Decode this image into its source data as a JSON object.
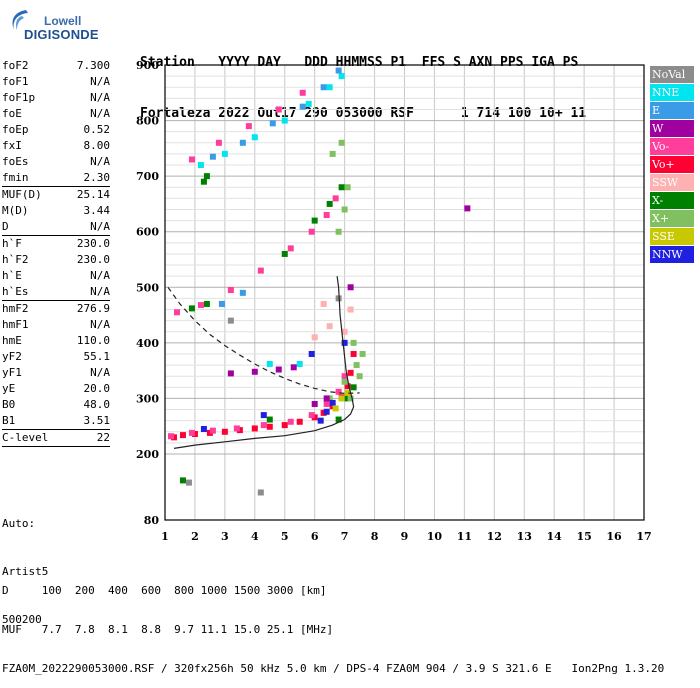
{
  "logo": {
    "top": "Lowell",
    "main": "DIGISONDE"
  },
  "header": {
    "line1": "Station   YYYY DAY   DDD HHMMSS P1  FFS S AXN PPS IGA PS",
    "line2": "Fortaleza 2022 Out17 290 053000 RSF      1 714 100 10+ 11"
  },
  "params": [
    {
      "name": "foF2",
      "value": "7.300"
    },
    {
      "name": "foF1",
      "value": "N/A"
    },
    {
      "name": "foF1p",
      "value": "N/A"
    },
    {
      "name": "foE",
      "value": "N/A"
    },
    {
      "name": "foEp",
      "value": "0.52"
    },
    {
      "name": "fxI",
      "value": "8.00"
    },
    {
      "name": "foEs",
      "value": "N/A"
    },
    {
      "name": "fmin",
      "value": "2.30",
      "sep": true
    },
    {
      "name": "MUF(D)",
      "value": "25.14"
    },
    {
      "name": "M(D)",
      "value": "3.44"
    },
    {
      "name": "D",
      "value": "N/A",
      "sep": true
    },
    {
      "name": "h`F",
      "value": "230.0"
    },
    {
      "name": "h`F2",
      "value": "230.0"
    },
    {
      "name": "h`E",
      "value": "N/A"
    },
    {
      "name": "h`Es",
      "value": "N/A",
      "sep": true
    },
    {
      "name": "hmF2",
      "value": "276.9"
    },
    {
      "name": "hmF1",
      "value": "N/A"
    },
    {
      "name": "hmE",
      "value": "110.0"
    },
    {
      "name": "yF2",
      "value": "55.1"
    },
    {
      "name": "yF1",
      "value": "N/A"
    },
    {
      "name": "yE",
      "value": "20.0"
    },
    {
      "name": "B0",
      "value": "48.0"
    },
    {
      "name": "B1",
      "value": "3.51",
      "sep": true
    },
    {
      "name": "C-level",
      "value": "22",
      "sep": true
    }
  ],
  "auto": {
    "line1": "Auto:",
    "line2": "Artist5",
    "line3": "500200"
  },
  "footer": {
    "line1": "D     100  200  400  600  800 1000 1500 3000 [km]",
    "line2": "MUF   7.7  7.8  8.1  8.8  9.7 11.1 15.0 25.1 [MHz]",
    "line3": "FZA0M_2022290053000.RSF / 320fx256h 50 kHz 5.0 km / DPS-4 FZA0M 904 / 3.9 S 321.6 E   Ion2Png 1.3.20"
  },
  "legend": [
    {
      "label": "NoVal",
      "color": "#8c8c8c"
    },
    {
      "label": "NNE",
      "color": "#00e5ee"
    },
    {
      "label": "E",
      "color": "#3a9ce6"
    },
    {
      "label": "W",
      "color": "#a000a0"
    },
    {
      "label": "Vo-",
      "color": "#ff3d9a"
    },
    {
      "label": "Vo+",
      "color": "#ff0033"
    },
    {
      "label": "SSW",
      "color": "#ffb0b0"
    },
    {
      "label": "X-",
      "color": "#008000"
    },
    {
      "label": "X+",
      "color": "#80c060"
    },
    {
      "label": "SSE",
      "color": "#c8c800"
    },
    {
      "label": "NNW",
      "color": "#2020e0"
    }
  ],
  "chart_data": {
    "type": "scatter",
    "title": "",
    "xlabel": "",
    "ylabel": "",
    "xlim": [
      1,
      17
    ],
    "ylim": [
      80,
      900
    ],
    "xticks": [
      "1",
      "2",
      "3",
      "4",
      "5",
      "6",
      "7",
      "8",
      "9",
      "10",
      "11",
      "12",
      "13",
      "14",
      "15",
      "16",
      "17"
    ],
    "yticks": [
      "80",
      "200",
      "300",
      "400",
      "500",
      "600",
      "700",
      "800",
      "900"
    ],
    "yticks_values": [
      80,
      200,
      300,
      400,
      500,
      600,
      700,
      800,
      900
    ],
    "grid": true,
    "series": [
      {
        "name": "Vo+",
        "color": "#ff0033",
        "points": [
          [
            1.3,
            230
          ],
          [
            1.6,
            234
          ],
          [
            2.0,
            236
          ],
          [
            2.5,
            238
          ],
          [
            3.0,
            240
          ],
          [
            3.5,
            243
          ],
          [
            4.0,
            246
          ],
          [
            4.5,
            249
          ],
          [
            5.0,
            252
          ],
          [
            5.5,
            258
          ],
          [
            6.0,
            266
          ],
          [
            6.3,
            274
          ],
          [
            6.6,
            286
          ],
          [
            6.9,
            302
          ],
          [
            7.1,
            322
          ],
          [
            7.2,
            346
          ],
          [
            7.3,
            380
          ]
        ]
      },
      {
        "name": "Vo-",
        "color": "#ff3d9a",
        "points": [
          [
            1.2,
            232
          ],
          [
            1.9,
            238
          ],
          [
            2.6,
            242
          ],
          [
            3.4,
            246
          ],
          [
            4.3,
            252
          ],
          [
            5.2,
            258
          ],
          [
            5.9,
            270
          ],
          [
            6.4,
            290
          ],
          [
            6.8,
            312
          ],
          [
            7.0,
            340
          ],
          [
            1.4,
            455
          ],
          [
            2.2,
            468
          ],
          [
            3.2,
            495
          ],
          [
            4.2,
            530
          ],
          [
            5.2,
            570
          ],
          [
            5.9,
            600
          ],
          [
            6.4,
            630
          ],
          [
            6.7,
            660
          ],
          [
            1.9,
            730
          ],
          [
            2.8,
            760
          ],
          [
            3.8,
            790
          ],
          [
            4.8,
            820
          ],
          [
            5.6,
            850
          ]
        ]
      },
      {
        "name": "X-",
        "color": "#008000",
        "points": [
          [
            1.9,
            462
          ],
          [
            2.4,
            470
          ],
          [
            5.0,
            560
          ],
          [
            6.0,
            620
          ],
          [
            6.5,
            650
          ],
          [
            6.9,
            680
          ],
          [
            2.3,
            690
          ],
          [
            2.4,
            700
          ],
          [
            1.6,
            152
          ],
          [
            7.1,
            300
          ],
          [
            7.3,
            320
          ],
          [
            6.8,
            262
          ],
          [
            4.5,
            262
          ]
        ]
      },
      {
        "name": "X+",
        "color": "#80c060",
        "points": [
          [
            6.5,
            300
          ],
          [
            7.0,
            330
          ],
          [
            7.4,
            360
          ],
          [
            7.6,
            380
          ],
          [
            7.5,
            340
          ],
          [
            7.3,
            400
          ],
          [
            6.8,
            600
          ],
          [
            7.0,
            640
          ],
          [
            7.1,
            680
          ],
          [
            6.6,
            740
          ],
          [
            6.9,
            760
          ],
          [
            7.2,
            300
          ]
        ]
      },
      {
        "name": "NNE",
        "color": "#00e5ee",
        "points": [
          [
            2.2,
            720
          ],
          [
            3.0,
            740
          ],
          [
            4.0,
            770
          ],
          [
            5.0,
            800
          ],
          [
            5.8,
            830
          ],
          [
            6.5,
            860
          ],
          [
            6.9,
            880
          ],
          [
            5.5,
            362
          ],
          [
            4.5,
            362
          ]
        ]
      },
      {
        "name": "E",
        "color": "#3a9ce6",
        "points": [
          [
            2.6,
            735
          ],
          [
            3.6,
            760
          ],
          [
            4.6,
            795
          ],
          [
            5.6,
            825
          ],
          [
            6.3,
            860
          ],
          [
            6.8,
            890
          ],
          [
            2.9,
            470
          ],
          [
            3.6,
            490
          ]
        ]
      },
      {
        "name": "W",
        "color": "#a000a0",
        "points": [
          [
            3.2,
            345
          ],
          [
            4.0,
            348
          ],
          [
            4.8,
            352
          ],
          [
            5.3,
            356
          ],
          [
            11.1,
            642
          ],
          [
            6.0,
            290
          ],
          [
            6.4,
            300
          ],
          [
            7.2,
            500
          ]
        ]
      },
      {
        "name": "NNW",
        "color": "#2020e0",
        "points": [
          [
            6.2,
            260
          ],
          [
            6.4,
            276
          ],
          [
            6.6,
            292
          ],
          [
            2.3,
            245
          ],
          [
            5.9,
            380
          ],
          [
            4.3,
            270
          ],
          [
            7.0,
            400
          ]
        ]
      },
      {
        "name": "SSW",
        "color": "#ffb0b0",
        "points": [
          [
            6.0,
            410
          ],
          [
            6.5,
            430
          ],
          [
            7.0,
            420
          ],
          [
            7.2,
            460
          ],
          [
            6.3,
            470
          ]
        ]
      },
      {
        "name": "SSE",
        "color": "#c8c800",
        "points": [
          [
            6.9,
            300
          ],
          [
            7.1,
            310
          ],
          [
            6.7,
            282
          ]
        ]
      },
      {
        "name": "NoVal",
        "color": "#8c8c8c",
        "points": [
          [
            1.8,
            148
          ],
          [
            4.2,
            130
          ],
          [
            3.2,
            440
          ],
          [
            6.8,
            480
          ]
        ]
      }
    ],
    "curves": [
      {
        "name": "profile",
        "style": "solid",
        "points": [
          [
            1.3,
            210
          ],
          [
            2,
            216
          ],
          [
            3,
            222
          ],
          [
            4,
            228
          ],
          [
            5,
            233
          ],
          [
            6,
            242
          ],
          [
            6.6,
            252
          ],
          [
            7.0,
            262
          ],
          [
            7.2,
            272
          ],
          [
            7.3,
            285
          ],
          [
            7.25,
            300
          ],
          [
            7.15,
            320
          ],
          [
            7.05,
            350
          ],
          [
            6.95,
            400
          ],
          [
            6.85,
            450
          ],
          [
            6.8,
            500
          ],
          [
            6.75,
            520
          ]
        ]
      },
      {
        "name": "model",
        "style": "dashed",
        "points": [
          [
            1.1,
            500
          ],
          [
            1.5,
            470
          ],
          [
            2,
            440
          ],
          [
            2.5,
            415
          ],
          [
            3,
            395
          ],
          [
            3.5,
            378
          ],
          [
            4,
            362
          ],
          [
            4.5,
            348
          ],
          [
            5,
            336
          ],
          [
            5.5,
            326
          ],
          [
            6,
            318
          ],
          [
            6.5,
            312
          ],
          [
            7,
            309
          ],
          [
            7.5,
            310
          ]
        ]
      }
    ]
  }
}
